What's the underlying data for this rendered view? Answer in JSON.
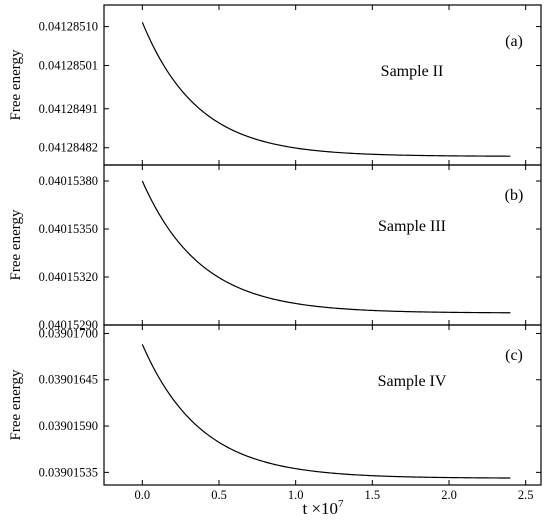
{
  "chart_data": [
    {
      "type": "line",
      "panel_label": "(a)",
      "annotation": "Sample II",
      "ylabel": "Free energy",
      "yticks": [
        0.04128482,
        0.04128491,
        0.04128501,
        0.0412851
      ],
      "ytick_labels": [
        "0.04128482",
        "0.04128491",
        "0.04128501",
        "0.04128510"
      ],
      "ylim": [
        0.04128478,
        0.04128515
      ],
      "curve": {
        "x_start": 0.0,
        "x_end": 2.4,
        "y_start": 0.04128511,
        "y_end": 0.0412848,
        "decay_tau": 0.36
      }
    },
    {
      "type": "line",
      "panel_label": "(b)",
      "annotation": "Sample III",
      "ylabel": "Free energy",
      "yticks": [
        0.0401529,
        0.0401532,
        0.0401535,
        0.0401538
      ],
      "ytick_labels": [
        "0.04015290",
        "0.04015320",
        "0.04015350",
        "0.04015380"
      ],
      "ylim": [
        0.0401529,
        0.0401539
      ],
      "curve": {
        "x_start": 0.0,
        "x_end": 2.4,
        "y_start": 0.0401538,
        "y_end": 0.040152975,
        "decay_tau": 0.38
      }
    },
    {
      "type": "line",
      "panel_label": "(c)",
      "annotation": "Sample IV",
      "ylabel": "Free energy",
      "yticks": [
        0.03901535,
        0.0390159,
        0.03901645,
        0.039017
      ],
      "ytick_labels": [
        "0.03901535",
        "0.03901590",
        "0.03901645",
        "0.03901700"
      ],
      "ylim": [
        0.0390152,
        0.0390171
      ],
      "curve": {
        "x_start": 0.0,
        "x_end": 2.4,
        "y_start": 0.03901687,
        "y_end": 0.03901528,
        "decay_tau": 0.38
      }
    }
  ],
  "x_axis": {
    "label": "t ×10",
    "label_exponent": "7",
    "xlim": [
      -0.25,
      2.6
    ],
    "ticks": [
      0.0,
      0.5,
      1.0,
      1.5,
      2.0,
      2.5
    ],
    "tick_labels": [
      "0.0",
      "0.5",
      "1.0",
      "1.5",
      "2.0",
      "2.5"
    ]
  },
  "colors": {
    "line": "#000000",
    "axes": "#000000",
    "background": "#ffffff"
  }
}
